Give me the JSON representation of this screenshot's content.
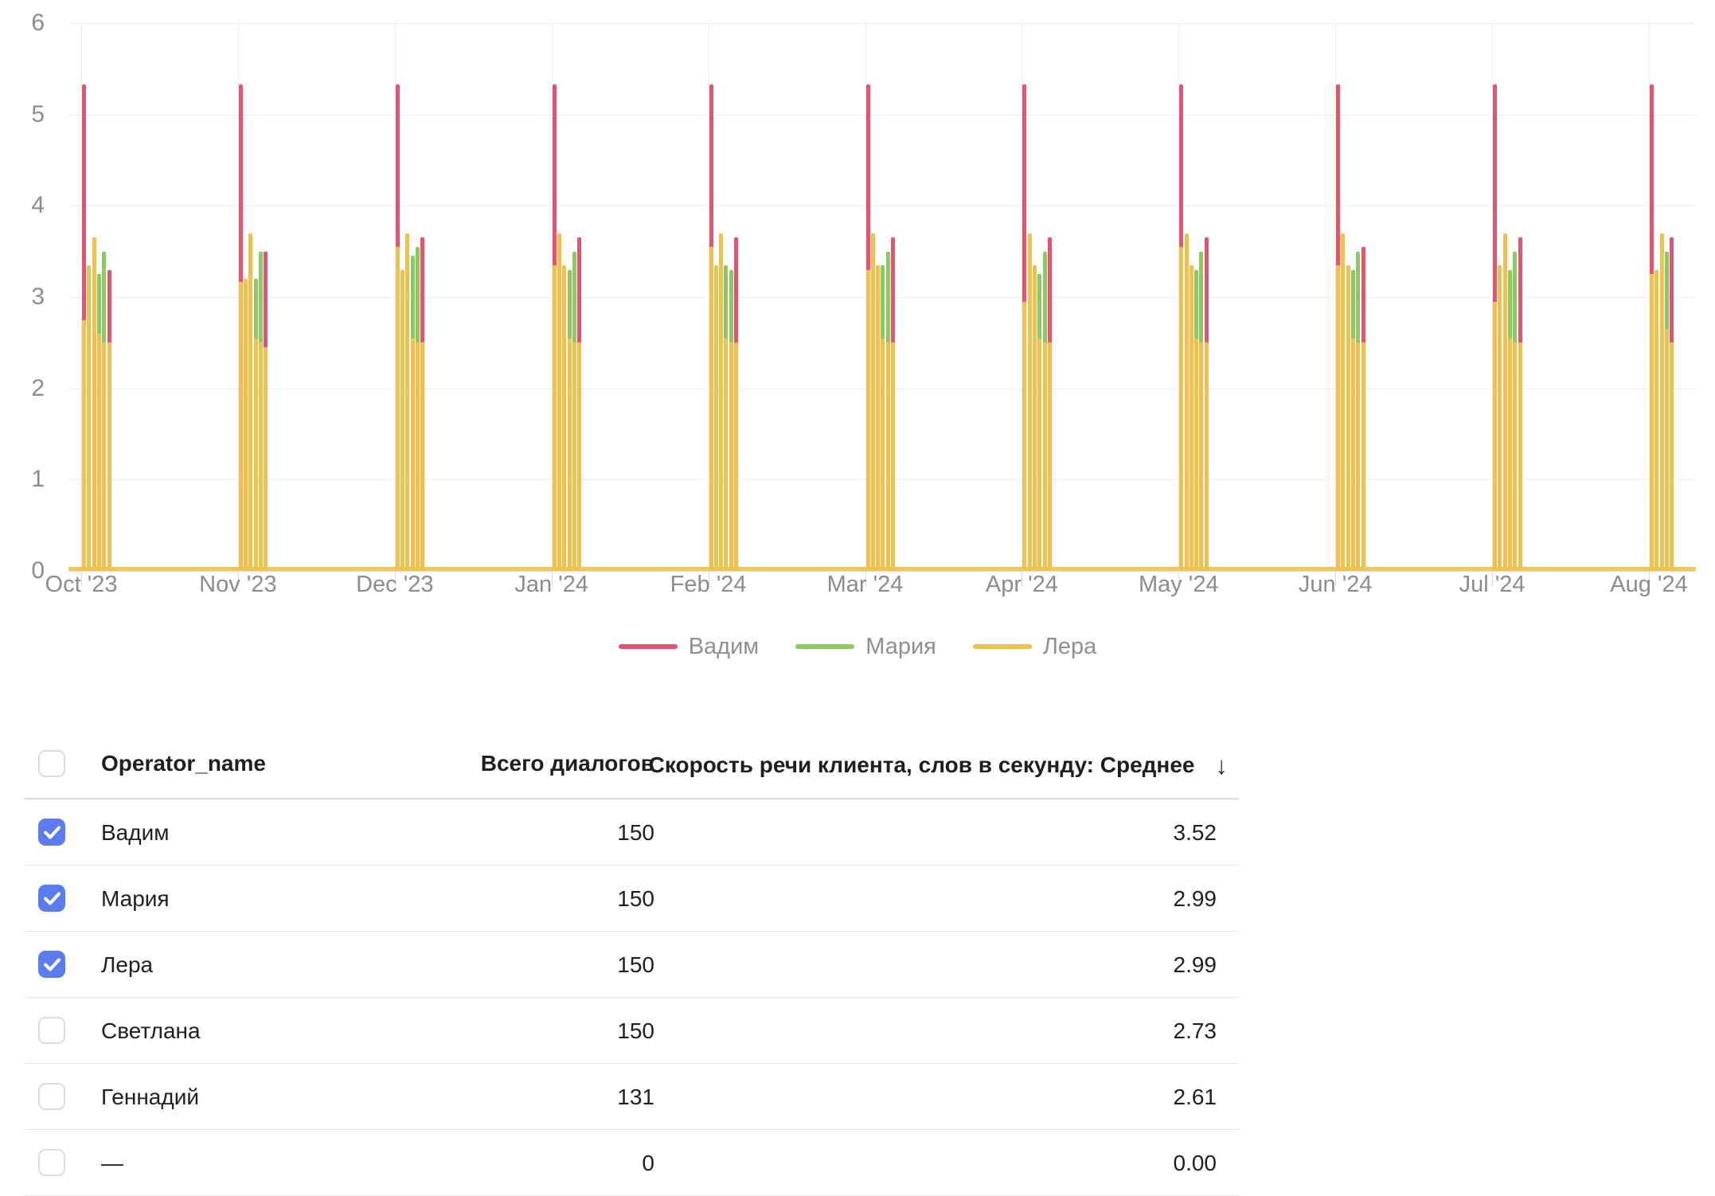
{
  "chart_data": {
    "type": "bar",
    "title": "",
    "ylim": [
      0,
      6
    ],
    "grid": true,
    "legend_position": "bottom",
    "y_ticks": [
      "6",
      "5",
      "4",
      "3",
      "2",
      "1",
      "0"
    ],
    "x_categories": [
      "Oct '23",
      "Nov '23",
      "Dec '23",
      "Jan '24",
      "Feb '24",
      "Mar '24",
      "Apr '24",
      "May '24",
      "Jun '24",
      "Jul '24",
      "Aug '24"
    ],
    "series": [
      {
        "name": "Вадим",
        "color": "#e5536e"
      },
      {
        "name": "Мария",
        "color": "#8ec863"
      },
      {
        "name": "Лера",
        "color": "#efc24f"
      }
    ],
    "baseline": {
      "series": "Лера",
      "value": 0.04,
      "color": "#eec65e"
    },
    "clusters": [
      {
        "month": "Oct '23",
        "bars": [
          {
            "series": "Вадим",
            "value": 5.33,
            "overlay_series": "Лера",
            "overlay_value": 2.75
          },
          {
            "series": "Лера",
            "value": 3.35
          },
          {
            "series": "Лера",
            "value": 3.65
          },
          {
            "series": "Мария",
            "value": 3.25,
            "overlay_series": "Лера",
            "overlay_value": 2.6
          },
          {
            "series": "Мария",
            "value": 3.5,
            "overlay_series": "Лера",
            "overlay_value": 2.5
          },
          {
            "series": "Вадим",
            "value": 3.3,
            "overlay_series": "Лера",
            "overlay_value": 2.5
          }
        ]
      },
      {
        "month": "Nov '23",
        "bars": [
          {
            "series": "Вадим",
            "value": 5.33,
            "overlay_series": "Лера",
            "overlay_value": 3.17
          },
          {
            "series": "Лера",
            "value": 3.2
          },
          {
            "series": "Лера",
            "value": 3.7
          },
          {
            "series": "Мария",
            "value": 3.2,
            "overlay_series": "Лера",
            "overlay_value": 2.55
          },
          {
            "series": "Мария",
            "value": 3.5,
            "overlay_series": "Лера",
            "overlay_value": 2.5
          },
          {
            "series": "Вадим",
            "value": 3.5,
            "overlay_series": "Лера",
            "overlay_value": 2.45
          }
        ]
      },
      {
        "month": "Dec '23",
        "bars": [
          {
            "series": "Вадим",
            "value": 5.33,
            "overlay_series": "Лера",
            "overlay_value": 3.55
          },
          {
            "series": "Лера",
            "value": 3.3
          },
          {
            "series": "Лера",
            "value": 3.7
          },
          {
            "series": "Мария",
            "value": 3.45,
            "overlay_series": "Лера",
            "overlay_value": 2.55
          },
          {
            "series": "Мария",
            "value": 3.55,
            "overlay_series": "Лера",
            "overlay_value": 2.5
          },
          {
            "series": "Вадим",
            "value": 3.65,
            "overlay_series": "Лера",
            "overlay_value": 2.5
          }
        ]
      },
      {
        "month": "Jan '24",
        "bars": [
          {
            "series": "Вадим",
            "value": 5.33,
            "overlay_series": "Лера",
            "overlay_value": 3.35
          },
          {
            "series": "Лера",
            "value": 3.7
          },
          {
            "series": "Лера",
            "value": 3.35
          },
          {
            "series": "Мария",
            "value": 3.3,
            "overlay_series": "Лера",
            "overlay_value": 2.55
          },
          {
            "series": "Мария",
            "value": 3.5,
            "overlay_series": "Лера",
            "overlay_value": 2.5
          },
          {
            "series": "Вадим",
            "value": 3.65,
            "overlay_series": "Лера",
            "overlay_value": 2.5
          }
        ]
      },
      {
        "month": "Feb '24",
        "bars": [
          {
            "series": "Вадим",
            "value": 5.33,
            "overlay_series": "Лера",
            "overlay_value": 3.55
          },
          {
            "series": "Лера",
            "value": 3.35
          },
          {
            "series": "Лера",
            "value": 3.7
          },
          {
            "series": "Мария",
            "value": 3.35,
            "overlay_series": "Лера",
            "overlay_value": 2.55
          },
          {
            "series": "Мария",
            "value": 3.3,
            "overlay_series": "Лера",
            "overlay_value": 2.5
          },
          {
            "series": "Вадим",
            "value": 3.65,
            "overlay_series": "Лера",
            "overlay_value": 2.5
          }
        ]
      },
      {
        "month": "Mar '24",
        "bars": [
          {
            "series": "Вадим",
            "value": 5.33,
            "overlay_series": "Лера",
            "overlay_value": 3.3
          },
          {
            "series": "Лера",
            "value": 3.7
          },
          {
            "series": "Лера",
            "value": 3.35
          },
          {
            "series": "Мария",
            "value": 3.35,
            "overlay_series": "Лера",
            "overlay_value": 2.55
          },
          {
            "series": "Мария",
            "value": 3.5,
            "overlay_series": "Лера",
            "overlay_value": 2.5
          },
          {
            "series": "Вадим",
            "value": 3.65,
            "overlay_series": "Лера",
            "overlay_value": 2.5
          }
        ]
      },
      {
        "month": "Apr '24",
        "bars": [
          {
            "series": "Вадим",
            "value": 5.33,
            "overlay_series": "Лера",
            "overlay_value": 2.95
          },
          {
            "series": "Лера",
            "value": 3.7
          },
          {
            "series": "Лера",
            "value": 3.35
          },
          {
            "series": "Мария",
            "value": 3.25,
            "overlay_series": "Лера",
            "overlay_value": 2.55
          },
          {
            "series": "Мария",
            "value": 3.5,
            "overlay_series": "Лера",
            "overlay_value": 2.5
          },
          {
            "series": "Вадим",
            "value": 3.65,
            "overlay_series": "Лера",
            "overlay_value": 2.5
          }
        ]
      },
      {
        "month": "May '24",
        "bars": [
          {
            "series": "Вадим",
            "value": 5.33,
            "overlay_series": "Лера",
            "overlay_value": 3.55
          },
          {
            "series": "Лера",
            "value": 3.7
          },
          {
            "series": "Лера",
            "value": 3.35
          },
          {
            "series": "Мария",
            "value": 3.3,
            "overlay_series": "Лера",
            "overlay_value": 2.55
          },
          {
            "series": "Мария",
            "value": 3.5,
            "overlay_series": "Лера",
            "overlay_value": 2.5
          },
          {
            "series": "Вадим",
            "value": 3.65,
            "overlay_series": "Лера",
            "overlay_value": 2.5
          }
        ]
      },
      {
        "month": "Jun '24",
        "bars": [
          {
            "series": "Вадим",
            "value": 5.33,
            "overlay_series": "Лера",
            "overlay_value": 3.35
          },
          {
            "series": "Лера",
            "value": 3.7
          },
          {
            "series": "Лера",
            "value": 3.35
          },
          {
            "series": "Мария",
            "value": 3.3,
            "overlay_series": "Лера",
            "overlay_value": 2.55
          },
          {
            "series": "Мария",
            "value": 3.5,
            "overlay_series": "Лера",
            "overlay_value": 2.5
          },
          {
            "series": "Вадим",
            "value": 3.55,
            "overlay_series": "Лера",
            "overlay_value": 2.5
          }
        ]
      },
      {
        "month": "Jul '24",
        "bars": [
          {
            "series": "Вадим",
            "value": 5.33,
            "overlay_series": "Лера",
            "overlay_value": 2.95
          },
          {
            "series": "Лера",
            "value": 3.35
          },
          {
            "series": "Лера",
            "value": 3.7
          },
          {
            "series": "Мария",
            "value": 3.3,
            "overlay_series": "Лера",
            "overlay_value": 2.55
          },
          {
            "series": "Мария",
            "value": 3.5,
            "overlay_series": "Лера",
            "overlay_value": 2.5
          },
          {
            "series": "Вадим",
            "value": 3.65,
            "overlay_series": "Лера",
            "overlay_value": 2.5
          }
        ]
      },
      {
        "month": "Aug '24",
        "bars": [
          {
            "series": "Вадим",
            "value": 5.33,
            "overlay_series": "Лера",
            "overlay_value": 3.25
          },
          {
            "series": "Лера",
            "value": 3.3
          },
          {
            "series": "Лера",
            "value": 3.7
          },
          {
            "series": "Мария",
            "value": 3.5,
            "overlay_series": "Лера",
            "overlay_value": 2.65
          },
          {
            "series": "Вадим",
            "value": 3.65,
            "overlay_series": "Лера",
            "overlay_value": 2.5
          }
        ]
      }
    ]
  },
  "legend": {
    "items": [
      {
        "label": "Вадим",
        "color": "#e5536e"
      },
      {
        "label": "Мария",
        "color": "#8ec863"
      },
      {
        "label": "Лера",
        "color": "#efc24f"
      }
    ]
  },
  "table": {
    "header": {
      "operator": "Operator_name",
      "dialogs": "Всего диалогов",
      "speed": "Скорость речи клиента, слов в секунду: Среднее",
      "sort_arrow": "↓"
    },
    "checkbox_color": "#5b7cf0",
    "rows": [
      {
        "checked": true,
        "operator": "Вадим",
        "dialogs": "150",
        "speed": "3.52"
      },
      {
        "checked": true,
        "operator": "Мария",
        "dialogs": "150",
        "speed": "2.99"
      },
      {
        "checked": true,
        "operator": "Лера",
        "dialogs": "150",
        "speed": "2.99"
      },
      {
        "checked": false,
        "operator": "Светлана",
        "dialogs": "150",
        "speed": "2.73"
      },
      {
        "checked": false,
        "operator": "Геннадий",
        "dialogs": "131",
        "speed": "2.61"
      },
      {
        "checked": false,
        "operator": "—",
        "dialogs": "0",
        "speed": "0.00"
      }
    ]
  }
}
